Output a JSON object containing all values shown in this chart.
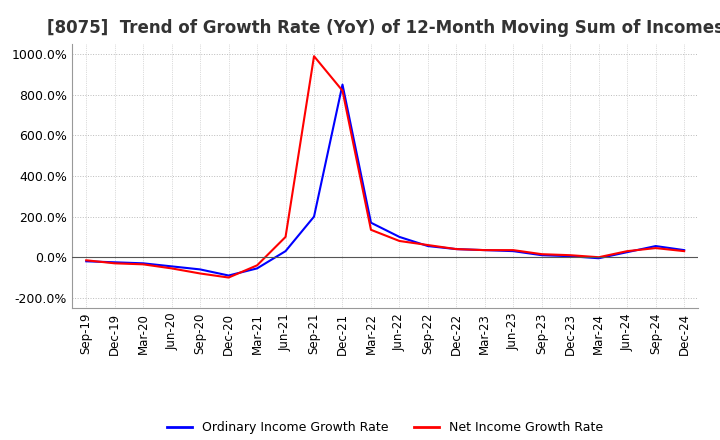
{
  "title": "[8075]  Trend of Growth Rate (YoY) of 12-Month Moving Sum of Incomes",
  "title_fontsize": 12,
  "line_blue": "#0000FF",
  "line_red": "#FF0000",
  "background_color": "#FFFFFF",
  "grid_color": "#BBBBBB",
  "ylim": [
    -250,
    1050
  ],
  "yticks": [
    -200,
    0,
    200,
    400,
    600,
    800,
    1000
  ],
  "legend_labels": [
    "Ordinary Income Growth Rate",
    "Net Income Growth Rate"
  ],
  "x_labels": [
    "Sep-19",
    "Dec-19",
    "Mar-20",
    "Jun-20",
    "Sep-20",
    "Dec-20",
    "Mar-21",
    "Jun-21",
    "Sep-21",
    "Dec-21",
    "Mar-22",
    "Jun-22",
    "Sep-22",
    "Dec-22",
    "Mar-23",
    "Jun-23",
    "Sep-23",
    "Dec-23",
    "Mar-24",
    "Jun-24",
    "Sep-24",
    "Dec-24"
  ],
  "ordinary_income_growth": [
    -20,
    -25,
    -30,
    -45,
    -60,
    -90,
    -55,
    30,
    200,
    850,
    170,
    100,
    55,
    40,
    35,
    30,
    10,
    5,
    -5,
    25,
    55,
    35
  ],
  "net_income_growth": [
    -15,
    -30,
    -35,
    -55,
    -80,
    -100,
    -40,
    100,
    990,
    820,
    135,
    80,
    60,
    40,
    35,
    35,
    15,
    10,
    0,
    30,
    45,
    30
  ]
}
